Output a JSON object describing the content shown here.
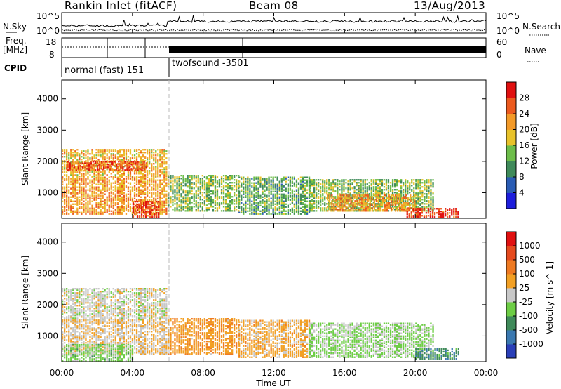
{
  "header": {
    "station": "Rankin Inlet (fitACF)",
    "beam": "Beam 08",
    "date": "13/Aug/2013"
  },
  "summary_panel": {
    "nsky_label": "N.Sky",
    "nsky_ticks": [
      "10^5",
      "10^0"
    ],
    "nsearch_label": "N.Search",
    "nsearch_ticks": [
      "10^5",
      "10^0"
    ],
    "freq_label": "Freq.",
    "freq_unit": "[MHz]",
    "freq_ticks": [
      "18",
      "8"
    ],
    "nave_label": "Nave",
    "nave_ticks": [
      "60",
      "0"
    ],
    "cpid_label": "CPID",
    "cpid_segments": [
      {
        "label": "normal (fast) 151",
        "start_hour": 0,
        "end_hour": 6
      },
      {
        "label": "twofsound -3501",
        "start_hour": 6,
        "end_hour": 24
      }
    ]
  },
  "colors": {
    "power_scale": [
      "#1e1edc",
      "#2a5cb4",
      "#3f8a5a",
      "#6dbd4a",
      "#e8c22a",
      "#f39a28",
      "#ec5a1e",
      "#e01010"
    ],
    "velocity_scale": [
      "#2a3fb8",
      "#3a78b0",
      "#3f8a5a",
      "#6dcd45",
      "#c8c8c8",
      "#f2a024",
      "#ef7a22",
      "#e54a1e",
      "#e01010"
    ]
  },
  "chart_data": [
    {
      "type": "heatmap",
      "name": "power",
      "ylabel": "Slant Range [km]",
      "xlabel": "",
      "xticks": [
        "00:00",
        "04:00",
        "08:00",
        "12:00",
        "16:00",
        "20:00",
        "00:00"
      ],
      "xlim_hours": [
        0,
        24
      ],
      "yticks": [
        1000,
        2000,
        3000,
        4000
      ],
      "ylim": [
        180,
        4600
      ],
      "colorbar": {
        "label": "Power [dB]",
        "ticks": [
          4,
          8,
          12,
          16,
          20,
          24,
          28
        ],
        "range": [
          0,
          32
        ]
      },
      "regions": [
        {
          "t": [
            0,
            6
          ],
          "r": [
            1500,
            2400
          ],
          "value": 20
        },
        {
          "t": [
            0.3,
            4.8
          ],
          "r": [
            1700,
            2000
          ],
          "value": 27
        },
        {
          "t": [
            0,
            6
          ],
          "r": [
            300,
            1500
          ],
          "value": 22
        },
        {
          "t": [
            4,
            5.5
          ],
          "r": [
            200,
            700
          ],
          "value": 28
        },
        {
          "t": [
            6,
            10
          ],
          "r": [
            400,
            1550
          ],
          "value": 14
        },
        {
          "t": [
            10,
            14
          ],
          "r": [
            300,
            1500
          ],
          "value": 12
        },
        {
          "t": [
            14,
            21
          ],
          "r": [
            400,
            1400
          ],
          "value": 14
        },
        {
          "t": [
            15,
            20
          ],
          "r": [
            400,
            900
          ],
          "value": 22
        },
        {
          "t": [
            19.5,
            22.5
          ],
          "r": [
            200,
            500
          ],
          "value": 28
        }
      ]
    },
    {
      "type": "heatmap",
      "name": "velocity",
      "ylabel": "Slant Range [km]",
      "xlabel": "Time UT",
      "xticks": [
        "00:00",
        "04:00",
        "08:00",
        "12:00",
        "16:00",
        "20:00",
        "00:00"
      ],
      "xlim_hours": [
        0,
        24
      ],
      "yticks": [
        1000,
        2000,
        3000,
        4000
      ],
      "ylim": [
        180,
        4600
      ],
      "colorbar": {
        "label": "Velocity [m s^-1]",
        "ticks": [
          1000,
          500,
          100,
          25,
          -25,
          -100,
          -500,
          -1000
        ],
        "range": [
          -1500,
          1500
        ]
      },
      "regions": [
        {
          "t": [
            0,
            6
          ],
          "r": [
            1500,
            2500
          ],
          "value": 0
        },
        {
          "t": [
            0,
            6
          ],
          "r": [
            400,
            1500
          ],
          "value": 150
        },
        {
          "t": [
            0,
            4
          ],
          "r": [
            200,
            700
          ],
          "value": -300
        },
        {
          "t": [
            6,
            10
          ],
          "r": [
            400,
            1550
          ],
          "value": 400
        },
        {
          "t": [
            10,
            14
          ],
          "r": [
            300,
            1500
          ],
          "value": 300
        },
        {
          "t": [
            14,
            21
          ],
          "r": [
            300,
            1400
          ],
          "value": -200
        },
        {
          "t": [
            20,
            22.5
          ],
          "r": [
            250,
            600
          ],
          "value": -700
        }
      ]
    }
  ]
}
